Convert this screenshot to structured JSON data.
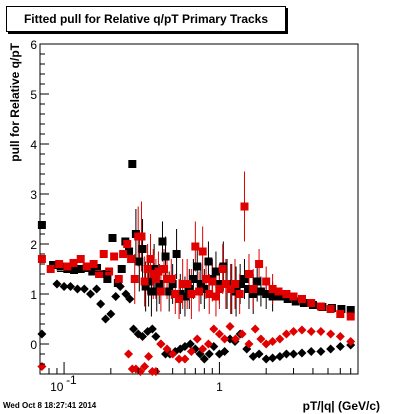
{
  "chart_data": {
    "type": "scatter",
    "title": "Fitted pull for Relative q/pT  Primary Tracks",
    "xlabel": "pT/|q| (GeV/c)",
    "ylabel": "pull for Relative q/pT",
    "x_scale": "log",
    "xlim": [
      0.07,
      7.8
    ],
    "ylim": [
      -0.6,
      6
    ],
    "grid": false,
    "legend": "none",
    "x_tick_labels": [
      {
        "value": 0.1,
        "base": "10",
        "exp": "-1"
      },
      {
        "value": 1,
        "text": "1"
      }
    ],
    "y_tick_labels": [
      {
        "value": 0,
        "text": "0"
      },
      {
        "value": 1,
        "text": "1"
      },
      {
        "value": 2,
        "text": "2"
      },
      {
        "value": 3,
        "text": "3"
      },
      {
        "value": 4,
        "text": "4"
      },
      {
        "value": 5,
        "text": "5"
      },
      {
        "value": 6,
        "text": "6"
      }
    ],
    "series": [
      {
        "marker": "square",
        "color": "#000000",
        "points": [
          {
            "x": 0.072,
            "y": 2.38
          },
          {
            "x": 0.085,
            "y": 1.58
          },
          {
            "x": 0.095,
            "y": 1.55
          },
          {
            "x": 0.105,
            "y": 1.5
          },
          {
            "x": 0.116,
            "y": 1.48
          },
          {
            "x": 0.128,
            "y": 1.5
          },
          {
            "x": 0.14,
            "y": 1.52
          },
          {
            "x": 0.152,
            "y": 1.45
          },
          {
            "x": 0.163,
            "y": 1.52
          },
          {
            "x": 0.175,
            "y": 1.4
          },
          {
            "x": 0.19,
            "y": 1.3
          },
          {
            "x": 0.205,
            "y": 2.12
          },
          {
            "x": 0.222,
            "y": 1.22
          },
          {
            "x": 0.235,
            "y": 1.5
          },
          {
            "x": 0.248,
            "y": 2.05
          },
          {
            "x": 0.262,
            "y": 1.85
          },
          {
            "x": 0.275,
            "y": 3.6
          },
          {
            "x": 0.29,
            "y": 2.2,
            "err": 0.5
          },
          {
            "x": 0.305,
            "y": 1.65,
            "err": 0.6
          },
          {
            "x": 0.32,
            "y": 1.9,
            "err": 0.6
          },
          {
            "x": 0.335,
            "y": 1.15,
            "err": 0.5
          },
          {
            "x": 0.35,
            "y": 1.25,
            "err": 0.5
          },
          {
            "x": 0.365,
            "y": 1.05,
            "err": 0.5
          },
          {
            "x": 0.38,
            "y": 1.5,
            "err": 0.5
          },
          {
            "x": 0.395,
            "y": 1.05,
            "err": 0.4
          },
          {
            "x": 0.41,
            "y": 1.2,
            "err": 0.4
          },
          {
            "x": 0.43,
            "y": 2.05,
            "err": 0.4
          },
          {
            "x": 0.45,
            "y": 1.75,
            "err": 0.4
          },
          {
            "x": 0.475,
            "y": 1.05,
            "err": 0.4
          },
          {
            "x": 0.5,
            "y": 1.2,
            "err": 0.4
          },
          {
            "x": 0.53,
            "y": 1.8,
            "err": 0.5
          },
          {
            "x": 0.56,
            "y": 1.0,
            "err": 0.4
          },
          {
            "x": 0.6,
            "y": 0.95,
            "err": 0.4
          },
          {
            "x": 0.64,
            "y": 1.1,
            "err": 0.4
          },
          {
            "x": 0.68,
            "y": 1.3,
            "err": 0.4
          },
          {
            "x": 0.72,
            "y": 1.55,
            "err": 0.4
          },
          {
            "x": 0.76,
            "y": 1.2,
            "err": 0.4
          },
          {
            "x": 0.8,
            "y": 1.1,
            "err": 0.4
          },
          {
            "x": 0.85,
            "y": 1.65,
            "err": 0.4
          },
          {
            "x": 0.9,
            "y": 1.3,
            "err": 0.4
          },
          {
            "x": 0.95,
            "y": 1.45,
            "err": 0.4
          },
          {
            "x": 1.0,
            "y": 1.2,
            "err": 0.4
          },
          {
            "x": 1.06,
            "y": 1.55,
            "err": 0.5
          },
          {
            "x": 1.12,
            "y": 1.2,
            "err": 0.5
          },
          {
            "x": 1.2,
            "y": 1.1,
            "err": 0.5
          },
          {
            "x": 1.28,
            "y": 1.05,
            "err": 0.5
          },
          {
            "x": 1.36,
            "y": 1.2,
            "err": 0.4
          },
          {
            "x": 1.45,
            "y": 1.3,
            "err": 0.4
          },
          {
            "x": 1.55,
            "y": 1.1,
            "err": 0.4
          },
          {
            "x": 1.65,
            "y": 1.0,
            "err": 0.4
          },
          {
            "x": 1.75,
            "y": 1.25,
            "err": 0.4
          },
          {
            "x": 1.85,
            "y": 1.05,
            "err": 0.3
          },
          {
            "x": 2.0,
            "y": 1.0,
            "err": 0.3
          },
          {
            "x": 2.2,
            "y": 0.95,
            "err": 0.3
          },
          {
            "x": 2.45,
            "y": 0.95
          },
          {
            "x": 2.75,
            "y": 0.9
          },
          {
            "x": 3.1,
            "y": 0.85
          },
          {
            "x": 3.5,
            "y": 0.82
          },
          {
            "x": 4.0,
            "y": 0.78
          },
          {
            "x": 4.6,
            "y": 0.74
          },
          {
            "x": 5.3,
            "y": 0.72
          },
          {
            "x": 6.1,
            "y": 0.7
          },
          {
            "x": 7.0,
            "y": 0.68
          }
        ]
      },
      {
        "marker": "square",
        "color": "#e00000",
        "points": [
          {
            "x": 0.072,
            "y": 1.7
          },
          {
            "x": 0.082,
            "y": 1.5
          },
          {
            "x": 0.093,
            "y": 1.6
          },
          {
            "x": 0.105,
            "y": 1.55
          },
          {
            "x": 0.115,
            "y": 1.62
          },
          {
            "x": 0.128,
            "y": 1.7
          },
          {
            "x": 0.14,
            "y": 1.55
          },
          {
            "x": 0.155,
            "y": 1.6
          },
          {
            "x": 0.168,
            "y": 1.4
          },
          {
            "x": 0.18,
            "y": 1.8
          },
          {
            "x": 0.195,
            "y": 1.45
          },
          {
            "x": 0.21,
            "y": 1.75
          },
          {
            "x": 0.225,
            "y": 1.3
          },
          {
            "x": 0.24,
            "y": 1.8
          },
          {
            "x": 0.255,
            "y": 2.0
          },
          {
            "x": 0.27,
            "y": 1.7
          },
          {
            "x": 0.285,
            "y": 1.3,
            "err": 0.5
          },
          {
            "x": 0.3,
            "y": 2.15,
            "err": 0.6
          },
          {
            "x": 0.315,
            "y": 2.15,
            "err": 0.7
          },
          {
            "x": 0.33,
            "y": 1.25,
            "err": 0.5
          },
          {
            "x": 0.345,
            "y": 1.5,
            "err": 0.5
          },
          {
            "x": 0.36,
            "y": 1.7,
            "err": 0.5
          },
          {
            "x": 0.375,
            "y": 1.4,
            "err": 0.5
          },
          {
            "x": 0.39,
            "y": 1.3,
            "err": 0.4
          },
          {
            "x": 0.405,
            "y": 1.45,
            "err": 0.4
          },
          {
            "x": 0.42,
            "y": 1.05,
            "err": 0.4
          },
          {
            "x": 0.44,
            "y": 1.5,
            "err": 0.4
          },
          {
            "x": 0.46,
            "y": 1.3,
            "err": 0.4
          },
          {
            "x": 0.49,
            "y": 1.3,
            "err": 0.4
          },
          {
            "x": 0.52,
            "y": 1.0,
            "err": 0.4
          },
          {
            "x": 0.55,
            "y": 0.9,
            "err": 0.4
          },
          {
            "x": 0.58,
            "y": 1.2,
            "err": 0.5
          },
          {
            "x": 0.62,
            "y": 1.2,
            "err": 0.5
          },
          {
            "x": 0.66,
            "y": 1.0,
            "err": 0.5
          },
          {
            "x": 0.7,
            "y": 1.95,
            "err": 0.5
          },
          {
            "x": 0.74,
            "y": 1.05,
            "err": 0.4
          },
          {
            "x": 0.78,
            "y": 1.85,
            "err": 0.5
          },
          {
            "x": 0.82,
            "y": 1.3,
            "err": 0.4
          },
          {
            "x": 0.86,
            "y": 1.0,
            "err": 0.4
          },
          {
            "x": 0.9,
            "y": 1.25,
            "err": 0.4
          },
          {
            "x": 0.95,
            "y": 0.95,
            "err": 0.4
          },
          {
            "x": 1.0,
            "y": 1.1,
            "err": 0.4
          },
          {
            "x": 1.05,
            "y": 1.5,
            "err": 0.5
          },
          {
            "x": 1.1,
            "y": 1.2,
            "err": 0.5
          },
          {
            "x": 1.18,
            "y": 1.1,
            "err": 0.5
          },
          {
            "x": 1.26,
            "y": 1.2,
            "err": 0.5
          },
          {
            "x": 1.35,
            "y": 1.0,
            "err": 0.4
          },
          {
            "x": 1.45,
            "y": 2.75,
            "err": 0.7
          },
          {
            "x": 1.55,
            "y": 1.4,
            "err": 0.4
          },
          {
            "x": 1.65,
            "y": 1.1,
            "err": 0.4
          },
          {
            "x": 1.8,
            "y": 1.6,
            "err": 0.3
          },
          {
            "x": 2.0,
            "y": 1.25,
            "err": 0.3
          },
          {
            "x": 2.2,
            "y": 1.1,
            "err": 0.3
          },
          {
            "x": 2.4,
            "y": 1.05
          },
          {
            "x": 2.7,
            "y": 1.0
          },
          {
            "x": 3.0,
            "y": 0.95
          },
          {
            "x": 3.4,
            "y": 0.9
          },
          {
            "x": 3.9,
            "y": 0.82
          },
          {
            "x": 4.5,
            "y": 0.75
          },
          {
            "x": 5.2,
            "y": 0.7
          },
          {
            "x": 6.0,
            "y": 0.6
          },
          {
            "x": 7.0,
            "y": 0.55
          }
        ]
      },
      {
        "marker": "diamond",
        "color": "#000000",
        "points": [
          {
            "x": 0.072,
            "y": 0.2
          },
          {
            "x": 0.09,
            "y": 1.2
          },
          {
            "x": 0.1,
            "y": 1.15
          },
          {
            "x": 0.11,
            "y": 1.15
          },
          {
            "x": 0.122,
            "y": 1.1
          },
          {
            "x": 0.135,
            "y": 1.1
          },
          {
            "x": 0.148,
            "y": 1.0
          },
          {
            "x": 0.162,
            "y": 1.1
          },
          {
            "x": 0.172,
            "y": 0.8
          },
          {
            "x": 0.185,
            "y": 0.5
          },
          {
            "x": 0.2,
            "y": 0.6
          },
          {
            "x": 0.215,
            "y": 0.95
          },
          {
            "x": 0.23,
            "y": 1.15
          },
          {
            "x": 0.25,
            "y": 1.0
          },
          {
            "x": 0.265,
            "y": 0.9
          },
          {
            "x": 0.28,
            "y": 0.3
          },
          {
            "x": 0.3,
            "y": 0.2
          },
          {
            "x": 0.32,
            "y": 0.15
          },
          {
            "x": 0.345,
            "y": 0.25
          },
          {
            "x": 0.37,
            "y": 0.3
          },
          {
            "x": 0.39,
            "y": 0.15
          },
          {
            "x": 0.42,
            "y": 0.0
          },
          {
            "x": 0.45,
            "y": -0.2
          },
          {
            "x": 0.48,
            "y": -0.2
          },
          {
            "x": 0.52,
            "y": -0.15
          },
          {
            "x": 0.56,
            "y": -0.1
          },
          {
            "x": 0.6,
            "y": -0.05
          },
          {
            "x": 0.65,
            "y": 0.0
          },
          {
            "x": 0.7,
            "y": -0.1
          },
          {
            "x": 0.75,
            "y": -0.2
          },
          {
            "x": 0.8,
            "y": -0.3
          },
          {
            "x": 0.86,
            "y": -0.2
          },
          {
            "x": 0.92,
            "y": -0.05
          },
          {
            "x": 1.0,
            "y": -0.2
          },
          {
            "x": 1.08,
            "y": -0.15
          },
          {
            "x": 1.17,
            "y": 0.1
          },
          {
            "x": 1.26,
            "y": 0.05
          },
          {
            "x": 1.36,
            "y": 0.2
          },
          {
            "x": 1.5,
            "y": -0.1
          },
          {
            "x": 1.65,
            "y": -0.25
          },
          {
            "x": 1.8,
            "y": -0.2
          },
          {
            "x": 2.0,
            "y": -0.3
          },
          {
            "x": 2.2,
            "y": -0.28
          },
          {
            "x": 2.45,
            "y": -0.25
          },
          {
            "x": 2.7,
            "y": -0.2
          },
          {
            "x": 3.0,
            "y": -0.2
          },
          {
            "x": 3.4,
            "y": -0.18
          },
          {
            "x": 3.9,
            "y": -0.15
          },
          {
            "x": 4.5,
            "y": -0.15
          },
          {
            "x": 5.2,
            "y": -0.1
          },
          {
            "x": 6.0,
            "y": -0.05
          },
          {
            "x": 7.0,
            "y": -0.02
          }
        ]
      },
      {
        "marker": "diamond",
        "color": "#e00000",
        "points": [
          {
            "x": 0.072,
            "y": -0.45
          },
          {
            "x": 0.26,
            "y": -0.2
          },
          {
            "x": 0.275,
            "y": -0.5
          },
          {
            "x": 0.29,
            "y": -0.5
          },
          {
            "x": 0.31,
            "y": -0.55
          },
          {
            "x": 0.33,
            "y": -0.45
          },
          {
            "x": 0.35,
            "y": -0.25
          },
          {
            "x": 0.37,
            "y": -0.55
          },
          {
            "x": 0.39,
            "y": -0.55
          },
          {
            "x": 0.42,
            "y": 0.0
          },
          {
            "x": 0.46,
            "y": -0.1
          },
          {
            "x": 0.5,
            "y": -0.2
          },
          {
            "x": 0.55,
            "y": -0.3
          },
          {
            "x": 0.6,
            "y": -0.3
          },
          {
            "x": 0.66,
            "y": -0.15
          },
          {
            "x": 0.72,
            "y": 0.1
          },
          {
            "x": 0.78,
            "y": -0.1
          },
          {
            "x": 0.85,
            "y": 0.0
          },
          {
            "x": 0.92,
            "y": 0.3
          },
          {
            "x": 1.0,
            "y": 0.2
          },
          {
            "x": 1.08,
            "y": 0.1
          },
          {
            "x": 1.17,
            "y": 0.35
          },
          {
            "x": 1.27,
            "y": 0.1
          },
          {
            "x": 1.4,
            "y": 0.2
          },
          {
            "x": 1.55,
            "y": 0.0
          },
          {
            "x": 1.7,
            "y": 0.3
          },
          {
            "x": 1.85,
            "y": 0.1
          },
          {
            "x": 2.0,
            "y": 0.0
          },
          {
            "x": 2.2,
            "y": 0.05
          },
          {
            "x": 2.45,
            "y": 0.1
          },
          {
            "x": 2.7,
            "y": 0.2
          },
          {
            "x": 3.0,
            "y": 0.25
          },
          {
            "x": 3.4,
            "y": 0.28
          },
          {
            "x": 3.9,
            "y": 0.25
          },
          {
            "x": 4.5,
            "y": 0.25
          },
          {
            "x": 5.2,
            "y": 0.2
          },
          {
            "x": 6.0,
            "y": 0.15
          },
          {
            "x": 7.0,
            "y": 0.05
          }
        ]
      },
      {
        "marker": "line",
        "color": "#000000",
        "points": [
          {
            "x": 0.09,
            "y": 1.45
          },
          {
            "x": 0.14,
            "y": 1.45
          },
          {
            "x": 0.2,
            "y": 1.45
          }
        ]
      }
    ]
  },
  "footer": {
    "timestamp": "Wed Oct  8 18:27:41 2014"
  }
}
